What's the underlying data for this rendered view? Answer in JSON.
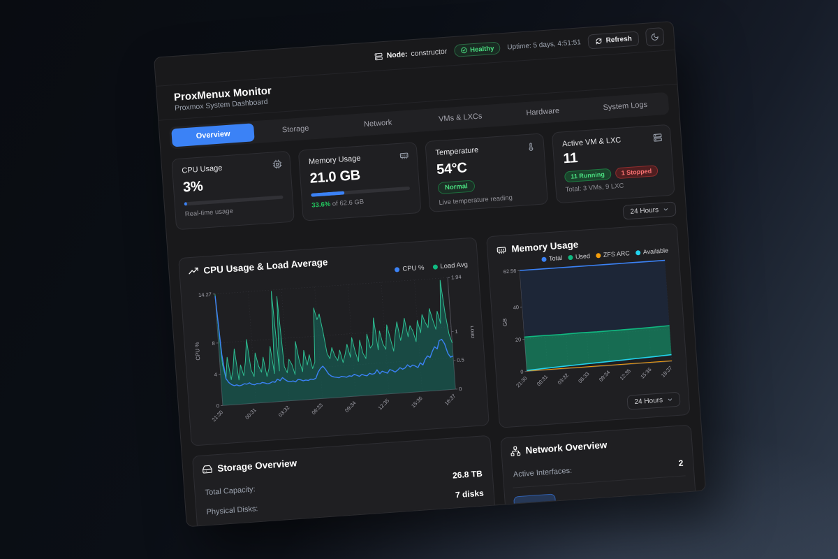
{
  "app": {
    "title": "ProxMenux Monitor",
    "subtitle": "Proxmox System Dashboard"
  },
  "topbar": {
    "node_label": "Node:",
    "node_value": "constructor",
    "health_badge": "Healthy",
    "uptime": "Uptime: 5 days, 4:51:51",
    "refresh_label": "Refresh",
    "icons": {
      "server": "server-icon",
      "health": "check-circle-icon",
      "refresh": "refresh-icon",
      "theme": "moon-icon"
    }
  },
  "tabs": {
    "items": [
      {
        "label": "Overview",
        "active": true
      },
      {
        "label": "Storage",
        "active": false
      },
      {
        "label": "Network",
        "active": false
      },
      {
        "label": "VMs & LXCs",
        "active": false
      },
      {
        "label": "Hardware",
        "active": false
      },
      {
        "label": "System Logs",
        "active": false
      }
    ]
  },
  "stats": {
    "cpu": {
      "label": "CPU Usage",
      "value": "3%",
      "percent": 3,
      "caption": "Real-time usage",
      "icon": "cpu-icon"
    },
    "memory": {
      "label": "Memory Usage",
      "value": "21.0 GB",
      "percent": 33.6,
      "caption_highlight": "33.6%",
      "caption_rest": " of 62.6 GB",
      "icon": "memory-icon"
    },
    "temperature": {
      "label": "Temperature",
      "value": "54°C",
      "badge": "Normal",
      "caption": "Live temperature reading",
      "icon": "thermometer-icon"
    },
    "vms": {
      "label": "Active VM & LXC",
      "value": "11",
      "running_badge": "11 Running",
      "stopped_badge": "1 Stopped",
      "caption": "Total: 3 VMs, 9 LXC",
      "icon": "stack-icon"
    }
  },
  "controls": {
    "period": "24 Hours",
    "period2": "24 Hours"
  },
  "storage": {
    "title": "Storage Overview",
    "rows": [
      {
        "label": "Total Capacity:",
        "value": "26.8 TB"
      },
      {
        "label": "Physical Disks:",
        "value": "7 disks"
      }
    ]
  },
  "network": {
    "title": "Network Overview",
    "rows": [
      {
        "label": "Active Interfaces:",
        "value": "2"
      }
    ],
    "interface_badge": ""
  },
  "colors": {
    "accent": "#3b82f6",
    "green": "#10b981",
    "orange": "#f59e0b",
    "cyan": "#22d3ee",
    "red": "#f87171",
    "cpu_line": "#2ebd91"
  },
  "chart_data": [
    {
      "type": "area",
      "title": "CPU Usage & Load Average",
      "legend": [
        {
          "label": "CPU %",
          "color": "#3b82f6"
        },
        {
          "label": "Load Avg",
          "color": "#10b981"
        }
      ],
      "xticks": [
        "21:30",
        "00:31",
        "03:32",
        "06:33",
        "09:34",
        "12:35",
        "15:36",
        "18:37"
      ],
      "ylabel_left": "CPU %",
      "ylabel_right": "Load",
      "ylim_left": [
        0,
        14.27
      ],
      "ylim_right": [
        0,
        1.94
      ],
      "yticks_left": [
        {
          "v": 0,
          "label": "0"
        },
        {
          "v": 4,
          "label": "4"
        },
        {
          "v": 8,
          "label": "8"
        },
        {
          "v": 14.27,
          "label": "14.27"
        }
      ],
      "yticks_right": [
        {
          "v": 0,
          "label": "0"
        },
        {
          "v": 0.5,
          "label": "0.5"
        },
        {
          "v": 1,
          "label": "1"
        },
        {
          "v": 1.94,
          "label": "1.94"
        }
      ],
      "grid": true,
      "series": [
        {
          "name": "CPU %",
          "axis": "left",
          "color": "#2ebd91",
          "width": 1,
          "fill_to": "baseline",
          "fill": "rgba(20,110,96,0.55)",
          "values": [
            14.2,
            5.2,
            3.4,
            6.1,
            3.2,
            4.6,
            7.1,
            3.1,
            5.0,
            3.6,
            5.4,
            8.2,
            4.3,
            3.4,
            6.4,
            4.7,
            3.9,
            5.8,
            3.3,
            4.3,
            7.1,
            3.6,
            14.1,
            3.9,
            13.4,
            4.4,
            3.6,
            5.3,
            4.6,
            3.3,
            7.5,
            5.0,
            3.6,
            6.3,
            4.4,
            5.7,
            3.9,
            4.7,
            11.6,
            10.1,
            10.8,
            8.5,
            5.7,
            5.0,
            6.4,
            5.3,
            4.7,
            6.0,
            4.4,
            5.4,
            6.7,
            5.0,
            7.5,
            5.7,
            4.4,
            7.1,
            5.4,
            4.7,
            7.8,
            6.0,
            6.4,
            9.8,
            5.7,
            8.1,
            6.4,
            5.7,
            8.8,
            7.1,
            5.4,
            7.5,
            9.1,
            6.7,
            7.8,
            9.5,
            7.1,
            8.5,
            7.8,
            6.4,
            9.1,
            7.5,
            9.8,
            8.8,
            8.1,
            10.5,
            9.1,
            7.8,
            10.1,
            8.5,
            14.0,
            9.8,
            7.1,
            5.9
          ]
        },
        {
          "name": "Load Avg",
          "axis": "right",
          "color": "#3b82f6",
          "width": 1.4,
          "values": [
            1.9,
            0.88,
            0.46,
            0.39,
            0.35,
            0.33,
            0.34,
            0.32,
            0.33,
            0.35,
            0.34,
            0.36,
            0.33,
            0.32,
            0.34,
            0.33,
            0.35,
            0.34,
            0.32,
            0.33,
            0.35,
            0.34,
            0.39,
            0.36,
            0.41,
            0.37,
            0.34,
            0.33,
            0.34,
            0.32,
            0.36,
            0.35,
            0.33,
            0.34,
            0.33,
            0.35,
            0.34,
            0.36,
            0.46,
            0.52,
            0.56,
            0.5,
            0.42,
            0.38,
            0.36,
            0.35,
            0.34,
            0.36,
            0.35,
            0.34,
            0.36,
            0.35,
            0.38,
            0.36,
            0.34,
            0.37,
            0.35,
            0.34,
            0.38,
            0.36,
            0.37,
            0.43,
            0.36,
            0.4,
            0.38,
            0.36,
            0.42,
            0.4,
            0.37,
            0.4,
            0.44,
            0.41,
            0.43,
            0.48,
            0.44,
            0.47,
            0.45,
            0.42,
            0.5,
            0.46,
            0.55,
            0.61,
            0.58,
            0.68,
            0.76,
            0.72,
            0.86,
            0.88,
            0.8,
            0.63,
            0.56,
            0.58
          ]
        }
      ]
    },
    {
      "type": "area",
      "title": "Memory Usage",
      "legend": [
        {
          "label": "Total",
          "color": "#3b82f6"
        },
        {
          "label": "Used",
          "color": "#10b981"
        },
        {
          "label": "ZFS ARC",
          "color": "#f59e0b"
        },
        {
          "label": "Available",
          "color": "#22d3ee"
        }
      ],
      "xticks": [
        "21:30",
        "00:31",
        "03:32",
        "06:33",
        "09:34",
        "12:35",
        "15:36",
        "18:37"
      ],
      "ylabel_left": "GB",
      "ylim_left": [
        0,
        62.56
      ],
      "yticks_left": [
        {
          "v": 0,
          "label": "0"
        },
        {
          "v": 20,
          "label": "20"
        },
        {
          "v": 40,
          "label": "40"
        },
        {
          "v": 62.56,
          "label": "62.56"
        }
      ],
      "grid": true,
      "series": [
        {
          "name": "Total",
          "axis": "left",
          "color": "#3b82f6",
          "width": 1.6,
          "fill_to": "Used",
          "fill": "#1d2637",
          "values": [
            62.56,
            62.56,
            62.56,
            62.56,
            62.56,
            62.56,
            62.56,
            62.56,
            62.56
          ]
        },
        {
          "name": "Used",
          "axis": "left",
          "color": "#10b981",
          "width": 1.6,
          "fill_to": "Available",
          "fill": "rgba(16,185,129,0.5)",
          "values": [
            21.3,
            21.4,
            21.3,
            21.5,
            21.4,
            21.5,
            21.6,
            21.8,
            22.1
          ]
        },
        {
          "name": "ZFS ARC",
          "axis": "left",
          "color": "#f59e0b",
          "width": 1,
          "values": [
            0.3,
            0.3,
            0.3,
            0.3,
            0.3,
            0.3,
            0.3,
            0.3,
            0.3
          ]
        },
        {
          "name": "Available",
          "axis": "left",
          "color": "#22d3ee",
          "width": 1.6,
          "values": [
            0.6,
            1.1,
            1.6,
            2.0,
            2.4,
            2.8,
            3.2,
            3.6,
            4.1
          ]
        }
      ]
    }
  ]
}
